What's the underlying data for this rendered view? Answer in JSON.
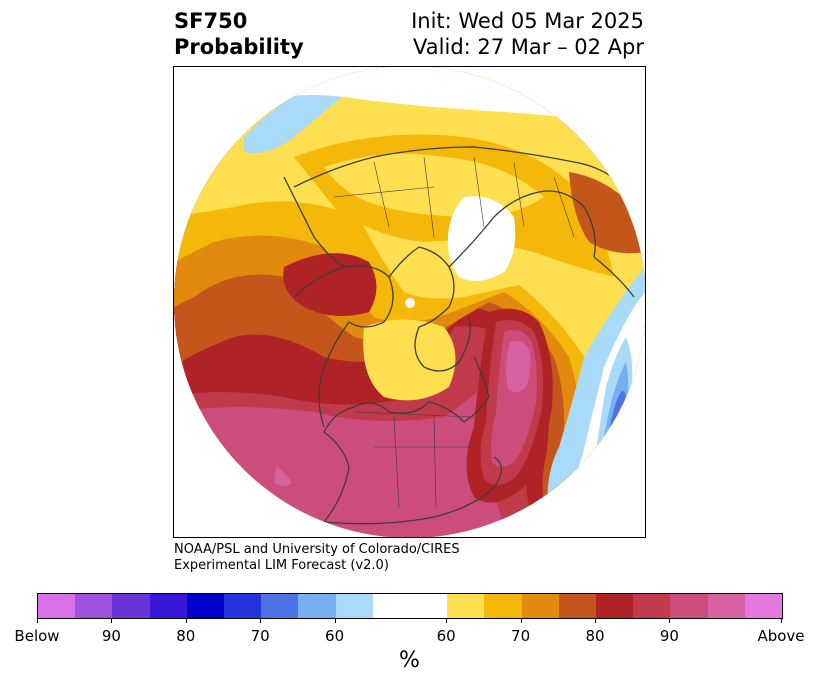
{
  "title": {
    "left_line1": "SF750",
    "left_line2": "Probability",
    "right_line1": "Init: Wed 05 Mar 2025",
    "right_line2": "Valid: 27 Mar – 02 Apr"
  },
  "credit": {
    "line1": "NOAA/PSL and University of Colorado/CIRES",
    "line2": "Experimental LIM Forecast (v2.0)"
  },
  "colorbar": {
    "colors": [
      "#d671e6",
      "#9f51e0",
      "#6a35d8",
      "#3818d6",
      "#0000cc",
      "#2534da",
      "#4d72e6",
      "#76b0f2",
      "#a9daf9",
      "#ffffff",
      "#ffffff",
      "#fedf4f",
      "#f4b80a",
      "#e18a0e",
      "#c4561b",
      "#af2226",
      "#c13a4b",
      "#cc4c7b",
      "#d861a3",
      "#e478e0"
    ],
    "tick_labels": [
      "Below",
      "90",
      "80",
      "70",
      "60",
      "60",
      "70",
      "80",
      "90",
      "Above"
    ],
    "label": "%"
  },
  "map": {
    "projection": "north-polar-stereographic",
    "variable": "SF750",
    "map_colors": {
      "above_90": "#cc4c7b",
      "above_85": "#c13a4b",
      "above_80": "#af2226",
      "above_75": "#c4561b",
      "above_70": "#e18a0e",
      "above_65": "#f4b80a",
      "above_60": "#fedf4f",
      "below_60": "#a9daf9",
      "below_65": "#76b0f2",
      "below_70": "#4d72e6",
      "coast": "#3d3d3d"
    }
  }
}
